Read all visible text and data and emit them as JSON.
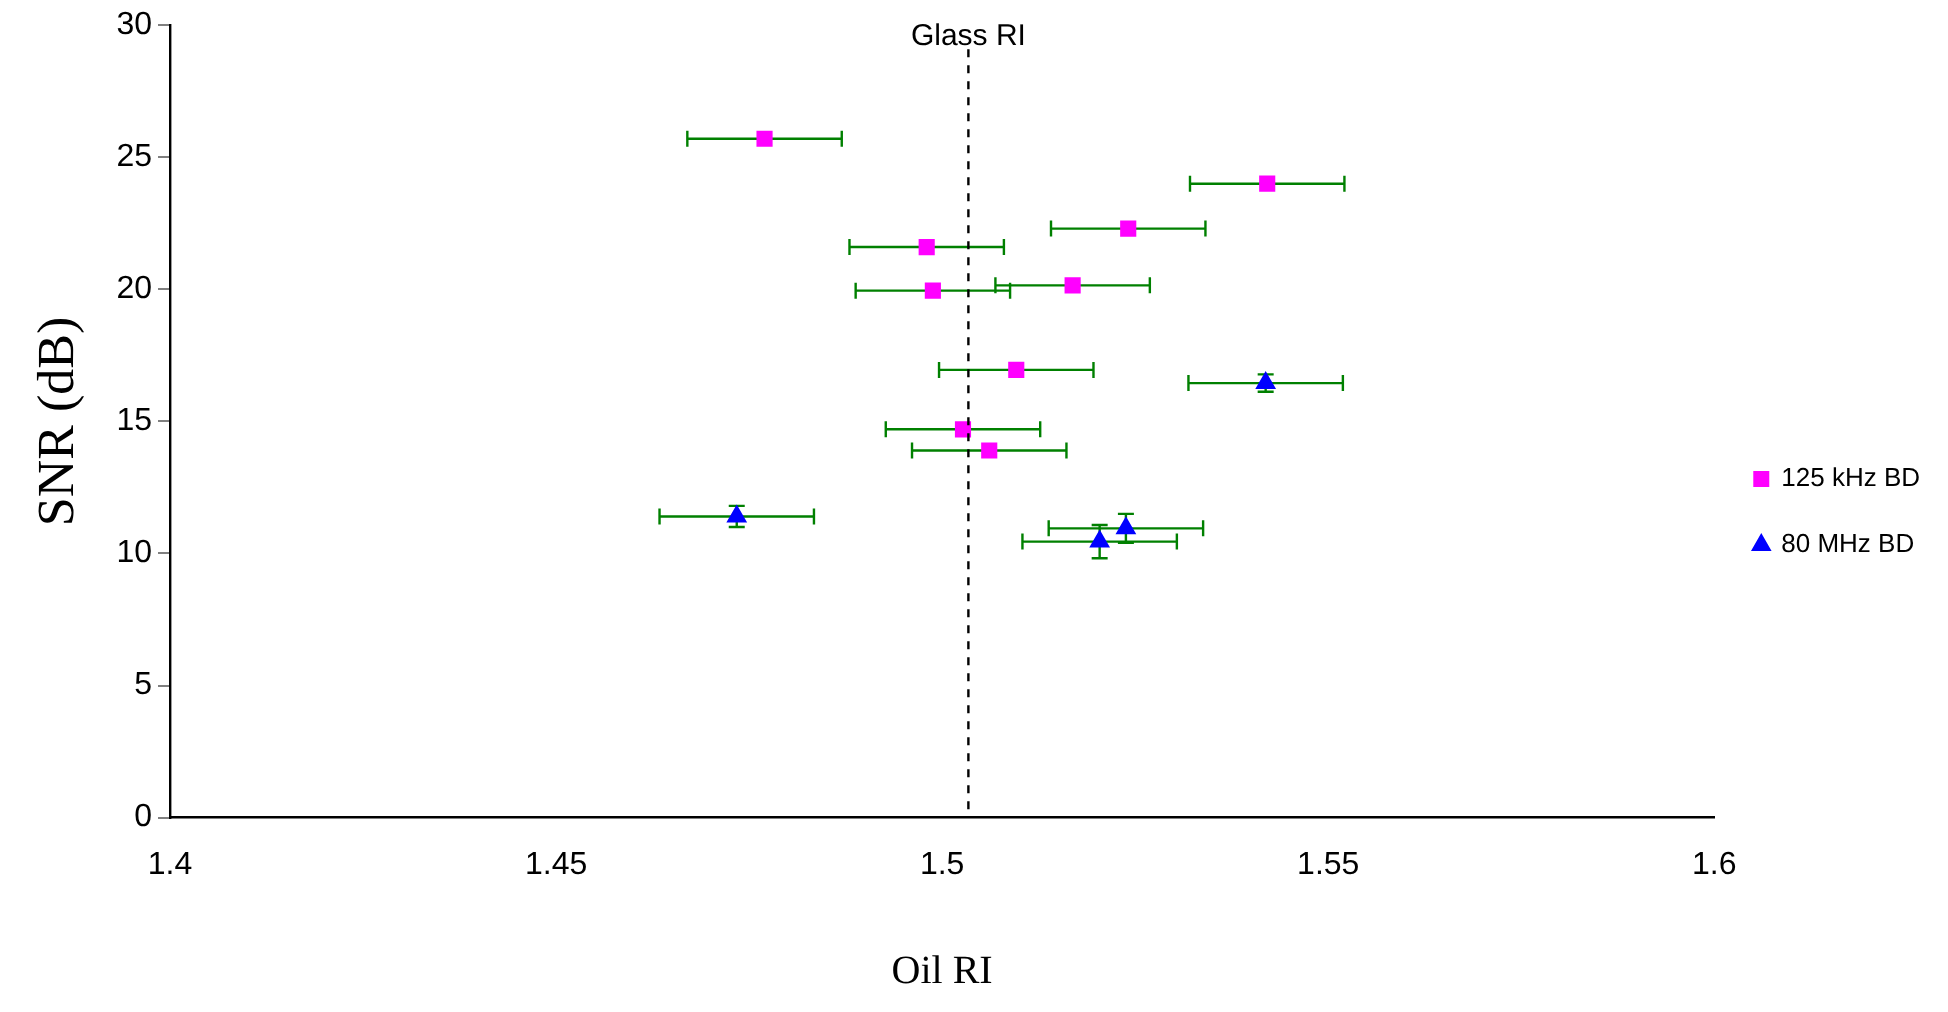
{
  "chart_data": {
    "type": "scatter",
    "xlabel": "Oil RI",
    "ylabel": "SNR (dB)",
    "xlim": [
      1.4,
      1.6
    ],
    "xticks": [
      1.4,
      1.45,
      1.5,
      1.55,
      1.6
    ],
    "ylim": [
      0,
      30
    ],
    "yticks": [
      0,
      5,
      10,
      15,
      20,
      25,
      30
    ],
    "grid": false,
    "legend": "right",
    "ref_lines": [
      {
        "axis": "x",
        "value": 1.5034,
        "label": "Glass RI",
        "color": "#000000",
        "line_style": "dashed"
      }
    ],
    "series": [
      {
        "name": "125 kHz BD",
        "color": "#ff00ff",
        "marker": "square",
        "x": [
          1.477,
          1.5421,
          1.5241,
          1.498,
          1.4988,
          1.5169,
          1.5096,
          1.5027,
          1.5061
        ],
        "values": [
          25.7,
          24.0,
          22.3,
          21.6,
          19.95,
          20.15,
          16.95,
          14.7,
          13.9
        ],
        "xerrors": [
          0.01,
          0.01,
          0.01,
          0.01,
          0.01,
          0.01,
          0.01,
          0.01,
          0.01
        ]
      },
      {
        "name": "80 MHz BD",
        "color": "#0000ff",
        "marker": "triangle",
        "x": [
          1.5419,
          1.4734,
          1.5238,
          1.5204
        ],
        "values": [
          16.45,
          11.4,
          10.95,
          10.45
        ],
        "xerrors": [
          0.01,
          0.01,
          0.01,
          0.01
        ],
        "errors": [
          0.33,
          0.4,
          0.55,
          0.63
        ]
      }
    ]
  }
}
